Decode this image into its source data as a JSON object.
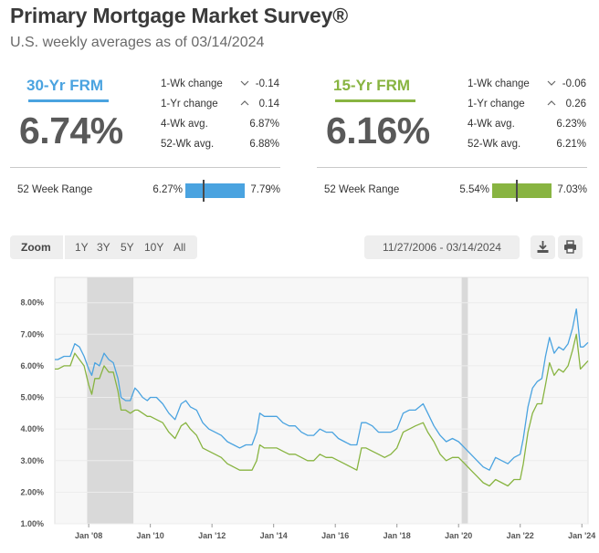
{
  "header": {
    "title": "Primary Mortgage Market Survey®",
    "subtitle": "U.S. weekly averages as of 03/14/2024"
  },
  "frm30": {
    "label": "30-Yr FRM",
    "rate": "6.74%",
    "color": "#4aa3e0",
    "stats": [
      {
        "label": "1-Wk change",
        "value": "-0.14",
        "arrow": "down"
      },
      {
        "label": "1-Yr change",
        "value": "0.14",
        "arrow": "up"
      },
      {
        "label": "4-Wk avg.",
        "value": "6.87%",
        "arrow": ""
      },
      {
        "label": "52-Wk avg.",
        "value": "6.88%",
        "arrow": ""
      }
    ],
    "range_label": "52 Week Range",
    "range_min": "6.27%",
    "range_max": "7.79%",
    "range_min_num": 6.27,
    "range_max_num": 7.79,
    "range_current_num": 6.74
  },
  "frm15": {
    "label": "15-Yr FRM",
    "rate": "6.16%",
    "color": "#88b441",
    "stats": [
      {
        "label": "1-Wk change",
        "value": "-0.06",
        "arrow": "down"
      },
      {
        "label": "1-Yr change",
        "value": "0.26",
        "arrow": "up"
      },
      {
        "label": "4-Wk avg.",
        "value": "6.23%",
        "arrow": ""
      },
      {
        "label": "52-Wk avg.",
        "value": "6.21%",
        "arrow": ""
      }
    ],
    "range_label": "52 Week Range",
    "range_min": "5.54%",
    "range_max": "7.03%",
    "range_min_num": 5.54,
    "range_max_num": 7.03,
    "range_current_num": 6.16
  },
  "toolbar": {
    "zoom_label": "Zoom",
    "zoom_options": [
      "1Y",
      "3Y",
      "5Y",
      "10Y",
      "All"
    ],
    "date_range": "11/27/2006 - 03/14/2024",
    "download_icon": "download-icon",
    "print_icon": "print-icon"
  },
  "chart_data": {
    "type": "line",
    "title": "",
    "xlabel": "",
    "ylabel": "",
    "x_range": [
      2006.9,
      2024.2
    ],
    "ylim": [
      1.0,
      8.8
    ],
    "y_ticks": [
      "1.00%",
      "2.00%",
      "3.00%",
      "4.00%",
      "5.00%",
      "6.00%",
      "7.00%",
      "8.00%"
    ],
    "x_tick_labels": [
      "Jan '08",
      "Jan '10",
      "Jan '12",
      "Jan '14",
      "Jan '16",
      "Jan '18",
      "Jan '20",
      "Jan '22",
      "Jan '24"
    ],
    "x_tick_values": [
      2008,
      2010,
      2012,
      2014,
      2016,
      2018,
      2020,
      2022,
      2024
    ],
    "recessions": [
      [
        2007.95,
        2009.45
      ],
      [
        2020.1,
        2020.3
      ]
    ],
    "recession_color": "#d9d9d9",
    "series": [
      {
        "name": "30-Yr FRM",
        "color": "#4aa3e0",
        "x": [
          2006.9,
          2007.0,
          2007.2,
          2007.4,
          2007.55,
          2007.7,
          2007.85,
          2008.0,
          2008.1,
          2008.2,
          2008.35,
          2008.5,
          2008.65,
          2008.8,
          2008.95,
          2009.05,
          2009.2,
          2009.35,
          2009.5,
          2009.6,
          2009.75,
          2009.9,
          2010.0,
          2010.2,
          2010.4,
          2010.6,
          2010.8,
          2011.0,
          2011.15,
          2011.3,
          2011.5,
          2011.7,
          2011.9,
          2012.1,
          2012.3,
          2012.5,
          2012.7,
          2012.9,
          2013.1,
          2013.3,
          2013.45,
          2013.55,
          2013.7,
          2013.9,
          2014.1,
          2014.3,
          2014.5,
          2014.7,
          2014.9,
          2015.1,
          2015.3,
          2015.5,
          2015.7,
          2015.9,
          2016.1,
          2016.3,
          2016.5,
          2016.7,
          2016.85,
          2017.0,
          2017.2,
          2017.4,
          2017.6,
          2017.8,
          2018.0,
          2018.2,
          2018.4,
          2018.6,
          2018.85,
          2019.0,
          2019.2,
          2019.4,
          2019.6,
          2019.8,
          2020.0,
          2020.2,
          2020.4,
          2020.6,
          2020.8,
          2021.0,
          2021.2,
          2021.4,
          2021.6,
          2021.8,
          2022.0,
          2022.1,
          2022.25,
          2022.4,
          2022.55,
          2022.7,
          2022.82,
          2022.95,
          2023.1,
          2023.25,
          2023.4,
          2023.55,
          2023.7,
          2023.82,
          2023.95,
          2024.05,
          2024.2
        ],
        "y": [
          6.2,
          6.2,
          6.3,
          6.3,
          6.7,
          6.6,
          6.3,
          5.9,
          5.7,
          6.1,
          6.0,
          6.4,
          6.2,
          6.1,
          5.6,
          5.0,
          4.9,
          4.9,
          5.3,
          5.2,
          5.0,
          4.9,
          5.0,
          5.0,
          4.8,
          4.5,
          4.3,
          4.8,
          4.9,
          4.7,
          4.6,
          4.2,
          4.0,
          3.9,
          3.8,
          3.6,
          3.5,
          3.4,
          3.5,
          3.5,
          3.9,
          4.5,
          4.4,
          4.4,
          4.4,
          4.2,
          4.1,
          4.1,
          3.9,
          3.8,
          3.8,
          4.0,
          3.9,
          3.9,
          3.7,
          3.6,
          3.5,
          3.5,
          4.2,
          4.2,
          4.1,
          3.9,
          3.9,
          3.9,
          4.0,
          4.5,
          4.6,
          4.6,
          4.8,
          4.5,
          4.1,
          3.8,
          3.6,
          3.7,
          3.6,
          3.4,
          3.2,
          3.0,
          2.8,
          2.7,
          3.1,
          3.0,
          2.9,
          3.1,
          3.2,
          3.7,
          4.7,
          5.3,
          5.5,
          5.6,
          6.3,
          6.9,
          6.4,
          6.6,
          6.5,
          6.7,
          7.2,
          7.8,
          6.6,
          6.6,
          6.74
        ]
      },
      {
        "name": "15-Yr FRM",
        "color": "#88b441",
        "x": [
          2006.9,
          2007.0,
          2007.2,
          2007.4,
          2007.55,
          2007.7,
          2007.85,
          2008.0,
          2008.1,
          2008.2,
          2008.35,
          2008.5,
          2008.65,
          2008.8,
          2008.95,
          2009.05,
          2009.2,
          2009.35,
          2009.5,
          2009.6,
          2009.75,
          2009.9,
          2010.0,
          2010.2,
          2010.4,
          2010.6,
          2010.8,
          2011.0,
          2011.15,
          2011.3,
          2011.5,
          2011.7,
          2011.9,
          2012.1,
          2012.3,
          2012.5,
          2012.7,
          2012.9,
          2013.1,
          2013.3,
          2013.45,
          2013.55,
          2013.7,
          2013.9,
          2014.1,
          2014.3,
          2014.5,
          2014.7,
          2014.9,
          2015.1,
          2015.3,
          2015.5,
          2015.7,
          2015.9,
          2016.1,
          2016.3,
          2016.5,
          2016.7,
          2016.85,
          2017.0,
          2017.2,
          2017.4,
          2017.6,
          2017.8,
          2018.0,
          2018.2,
          2018.4,
          2018.6,
          2018.85,
          2019.0,
          2019.2,
          2019.4,
          2019.6,
          2019.8,
          2020.0,
          2020.2,
          2020.4,
          2020.6,
          2020.8,
          2021.0,
          2021.2,
          2021.4,
          2021.6,
          2021.8,
          2022.0,
          2022.1,
          2022.25,
          2022.4,
          2022.55,
          2022.7,
          2022.82,
          2022.95,
          2023.1,
          2023.25,
          2023.4,
          2023.55,
          2023.7,
          2023.82,
          2023.95,
          2024.05,
          2024.2
        ],
        "y": [
          5.9,
          5.9,
          6.0,
          6.0,
          6.4,
          6.2,
          6.0,
          5.4,
          5.1,
          5.6,
          5.6,
          6.0,
          5.8,
          5.8,
          5.2,
          4.6,
          4.6,
          4.5,
          4.6,
          4.6,
          4.5,
          4.4,
          4.4,
          4.3,
          4.2,
          3.9,
          3.7,
          4.1,
          4.2,
          4.0,
          3.8,
          3.4,
          3.3,
          3.2,
          3.1,
          2.9,
          2.8,
          2.7,
          2.7,
          2.7,
          3.0,
          3.5,
          3.4,
          3.4,
          3.4,
          3.3,
          3.2,
          3.2,
          3.1,
          3.0,
          3.0,
          3.2,
          3.1,
          3.1,
          3.0,
          2.9,
          2.8,
          2.7,
          3.4,
          3.4,
          3.3,
          3.2,
          3.1,
          3.2,
          3.4,
          3.9,
          4.0,
          4.1,
          4.2,
          3.9,
          3.6,
          3.2,
          3.0,
          3.1,
          3.1,
          2.9,
          2.7,
          2.5,
          2.3,
          2.2,
          2.4,
          2.3,
          2.2,
          2.4,
          2.4,
          2.9,
          3.9,
          4.5,
          4.8,
          4.8,
          5.4,
          6.1,
          5.7,
          5.9,
          5.8,
          6.0,
          6.5,
          7.0,
          5.9,
          6.0,
          6.16
        ]
      }
    ]
  }
}
